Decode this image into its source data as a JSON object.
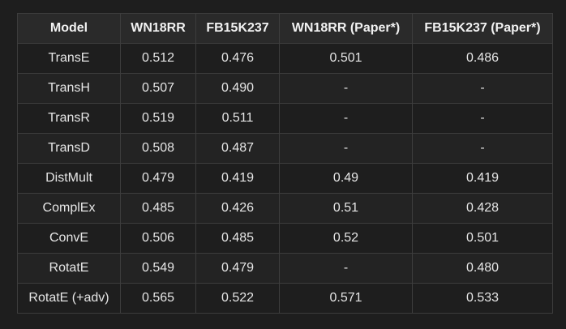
{
  "table": {
    "headers": [
      "Model",
      "WN18RR",
      "FB15K237",
      "WN18RR (Paper*)",
      "FB15K237 (Paper*)"
    ],
    "rows": [
      [
        "TransE",
        "0.512",
        "0.476",
        "0.501",
        "0.486"
      ],
      [
        "TransH",
        "0.507",
        "0.490",
        "-",
        "-"
      ],
      [
        "TransR",
        "0.519",
        "0.511",
        "-",
        "-"
      ],
      [
        "TransD",
        "0.508",
        "0.487",
        "-",
        "-"
      ],
      [
        "DistMult",
        "0.479",
        "0.419",
        "0.49",
        "0.419"
      ],
      [
        "ComplEx",
        "0.485",
        "0.426",
        "0.51",
        "0.428"
      ],
      [
        "ConvE",
        "0.506",
        "0.485",
        "0.52",
        "0.501"
      ],
      [
        "RotatE",
        "0.549",
        "0.479",
        "-",
        "0.480"
      ],
      [
        "RotatE (+adv)",
        "0.565",
        "0.522",
        "0.571",
        "0.533"
      ]
    ]
  },
  "colors": {
    "background": "#1e1e1e",
    "header_background": "#2a2a2a",
    "border": "#3d3d3d",
    "text": "#e6e6e6"
  }
}
